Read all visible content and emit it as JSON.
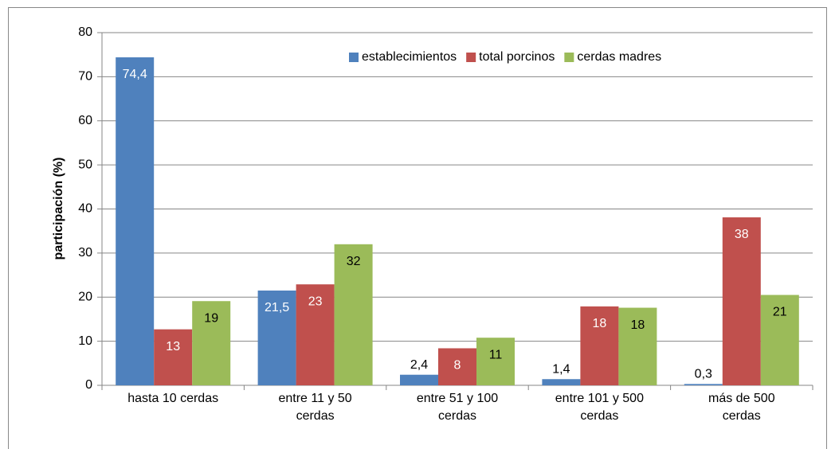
{
  "chart_data": {
    "type": "bar",
    "y_label": "participación  (%)",
    "categories": [
      "hasta 10 cerdas",
      "entre 11 y 50 cerdas",
      "entre 51 y 100 cerdas",
      "entre 101 y 500 cerdas",
      "más de 500 cerdas"
    ],
    "series": [
      {
        "name": "establecimientos",
        "color": "#4f81bd",
        "label_color": "#ffffff",
        "values": [
          74.4,
          21.5,
          2.4,
          1.4,
          0.3
        ],
        "value_labels": [
          "74,4",
          "21,5",
          "2,4",
          "1,4",
          "0,3"
        ]
      },
      {
        "name": "total porcinos",
        "color": "#c0504d",
        "label_color": "#ffffff",
        "values": [
          12.7,
          22.9,
          8.4,
          17.9,
          38.1
        ],
        "value_labels": [
          "13",
          "23",
          "8",
          "18",
          "38"
        ]
      },
      {
        "name": "cerdas madres",
        "color": "#9bbb59",
        "label_color": "#000000",
        "values": [
          19.1,
          32,
          10.8,
          17.6,
          20.5
        ],
        "value_labels": [
          "19",
          "32",
          "11",
          "18",
          "21"
        ]
      }
    ],
    "ylim": [
      0,
      80
    ],
    "yticks": [
      0,
      10,
      20,
      30,
      40,
      50,
      60,
      70,
      80
    ],
    "grid": true,
    "legend": "top-right"
  }
}
